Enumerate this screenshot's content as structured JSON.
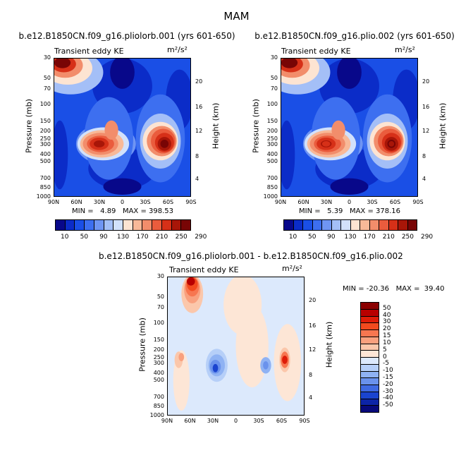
{
  "suptitle": "MAM",
  "chart_data": [
    {
      "type": "heatmap",
      "title": "b.e12.B1850CN.f09_g16.pliolorb.001 (yrs 601-650)",
      "left_label": "Transient eddy KE",
      "units": "m²/s²",
      "stats": "MIN =   4.89   MAX = 398.53",
      "min": 4.89,
      "max": 398.53,
      "xlabel": "",
      "ylabel": "Pressure (mb)",
      "y2label": "Height (km)",
      "x_ticks": [
        "90N",
        "60N",
        "30N",
        "0",
        "30S",
        "60S",
        "90S"
      ],
      "y_ticks": [
        "30",
        "50",
        "70",
        "100",
        "150",
        "200",
        "250",
        "300",
        "400",
        "500",
        "700",
        "850",
        "1000"
      ],
      "y2_ticks": [
        "20",
        "16",
        "12",
        "8",
        "4"
      ],
      "colorbar_labels": [
        "10",
        "50",
        "90",
        "130",
        "170",
        "210",
        "250",
        "290"
      ]
    },
    {
      "type": "heatmap",
      "title": "b.e12.B1850CN.f09_g16.plio.002 (yrs 601-650)",
      "left_label": "Transient eddy KE",
      "units": "m²/s²",
      "stats": "MIN =   5.39   MAX = 378.16",
      "min": 5.39,
      "max": 378.16,
      "xlabel": "",
      "ylabel": "Pressure (mb)",
      "y2label": "Height (km)",
      "x_ticks": [
        "90N",
        "60N",
        "30N",
        "0",
        "30S",
        "60S",
        "90S"
      ],
      "y_ticks": [
        "30",
        "50",
        "70",
        "100",
        "150",
        "200",
        "250",
        "300",
        "400",
        "500",
        "700",
        "850",
        "1000"
      ],
      "y2_ticks": [
        "20",
        "16",
        "12",
        "8",
        "4"
      ],
      "colorbar_labels": [
        "10",
        "50",
        "90",
        "130",
        "170",
        "210",
        "250",
        "290"
      ]
    },
    {
      "type": "heatmap",
      "title": "b.e12.B1850CN.f09_g16.pliolorb.001 - b.e12.B1850CN.f09_g16.plio.002",
      "left_label": "Transient eddy KE",
      "units": "m²/s²",
      "stats": "MIN = -20.36   MAX =  39.40",
      "min": -20.36,
      "max": 39.4,
      "xlabel": "",
      "ylabel": "Pressure (mb)",
      "y2label": "Height (km)",
      "x_ticks": [
        "90N",
        "60N",
        "30N",
        "0",
        "30S",
        "60S",
        "90S"
      ],
      "y_ticks": [
        "30",
        "50",
        "70",
        "100",
        "150",
        "200",
        "250",
        "300",
        "400",
        "500",
        "700",
        "850",
        "1000"
      ],
      "y2_ticks": [
        "20",
        "16",
        "12",
        "8",
        "4"
      ],
      "colorbar_labels": [
        "50",
        "40",
        "30",
        "20",
        "15",
        "10",
        "5",
        "0",
        "-5",
        "-10",
        "-15",
        "-20",
        "-30",
        "-40",
        "-50"
      ]
    }
  ],
  "colors": {
    "seq": [
      "#08088a",
      "#0b2cc8",
      "#1a4fe6",
      "#3d6ff0",
      "#6f95f3",
      "#a4bff7",
      "#d2e1fb",
      "#fde4d2",
      "#f8b998",
      "#f28d6b",
      "#ea5c3d",
      "#d63018",
      "#a81608",
      "#780505"
    ],
    "div": [
      "#8b0000",
      "#b80000",
      "#de1c08",
      "#f24a1e",
      "#f77650",
      "#f9a07e",
      "#fbc7ab",
      "#fde6d6",
      "#dce9fc",
      "#b6cff8",
      "#8fb2f3",
      "#6a92ec",
      "#3f6ae2",
      "#1a44cf",
      "#0c24a7",
      "#07097a"
    ]
  }
}
